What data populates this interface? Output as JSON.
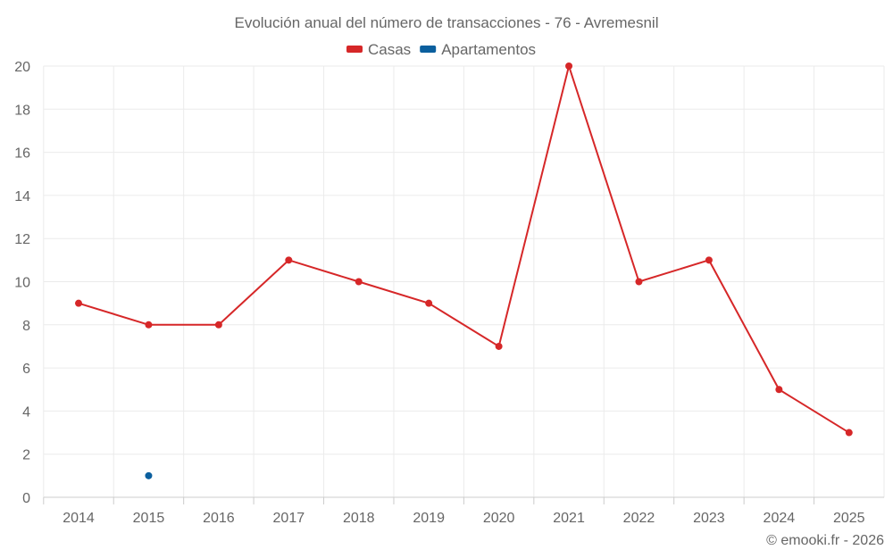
{
  "chart_data": {
    "type": "line",
    "title": "Evolución anual del número de transacciones - 76 - Avremesnil",
    "categories": [
      "2014",
      "2015",
      "2016",
      "2017",
      "2018",
      "2019",
      "2020",
      "2021",
      "2022",
      "2023",
      "2024",
      "2025"
    ],
    "series": [
      {
        "name": "Casas",
        "color": "#d62728",
        "values": [
          9,
          8,
          8,
          11,
          10,
          9,
          7,
          20,
          10,
          11,
          5,
          3
        ]
      },
      {
        "name": "Apartamentos",
        "color": "#0b5f9e",
        "values": [
          null,
          1,
          null,
          null,
          null,
          null,
          null,
          null,
          null,
          null,
          null,
          null
        ]
      }
    ],
    "ylim": [
      0,
      20
    ],
    "yticks": [
      0,
      2,
      4,
      6,
      8,
      10,
      12,
      14,
      16,
      18,
      20
    ],
    "grid": true,
    "legend": "top-center",
    "xlabel": "",
    "ylabel": ""
  },
  "credit": "© emooki.fr - 2026"
}
